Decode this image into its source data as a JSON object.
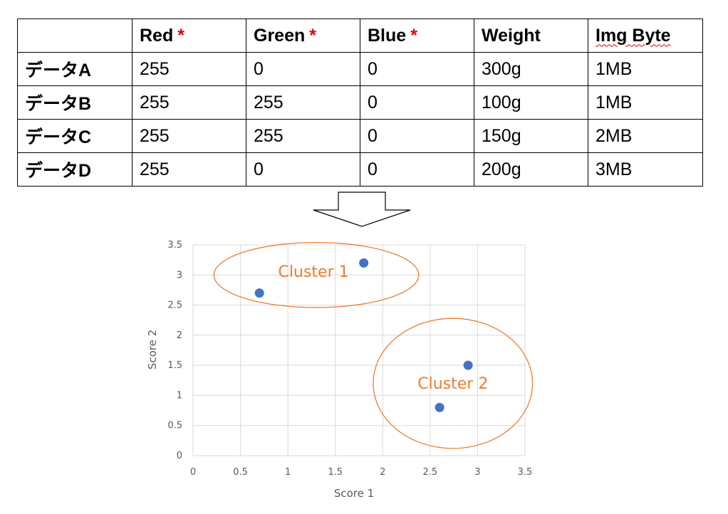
{
  "table": {
    "headers": [
      "",
      "Red",
      "Green",
      "Blue",
      "Weight",
      "Img Byte"
    ],
    "required_mark": "*",
    "rows": [
      [
        "データA",
        "255",
        "0",
        "0",
        "300g",
        "1MB"
      ],
      [
        "データB",
        "255",
        "255",
        "0",
        "100g",
        "1MB"
      ],
      [
        "データC",
        "255",
        "255",
        "0",
        "150g",
        "2MB"
      ],
      [
        "データD",
        "255",
        "0",
        "0",
        "200g",
        "3MB"
      ]
    ]
  },
  "chart_data": {
    "type": "scatter",
    "xlabel": "Score 1",
    "ylabel": "Score 2",
    "xlim": [
      0,
      3.5
    ],
    "ylim": [
      0,
      3.5
    ],
    "x_ticks": [
      "0",
      "0.5",
      "1",
      "1.5",
      "2",
      "2.5",
      "3",
      "3.5"
    ],
    "y_ticks": [
      "0",
      "0.5",
      "1",
      "1.5",
      "2",
      "2.5",
      "3",
      "3.5"
    ],
    "grid": true,
    "points": [
      {
        "x": 0.7,
        "y": 2.7
      },
      {
        "x": 1.8,
        "y": 3.2
      },
      {
        "x": 2.9,
        "y": 1.5
      },
      {
        "x": 2.6,
        "y": 0.8
      }
    ],
    "clusters": [
      {
        "label": "Cluster 1"
      },
      {
        "label": "Cluster 2"
      }
    ],
    "colors": {
      "points": "#4472c4",
      "clusters": "#ed7d31",
      "grid": "#d9d9d9",
      "axis_text": "#595959"
    }
  }
}
